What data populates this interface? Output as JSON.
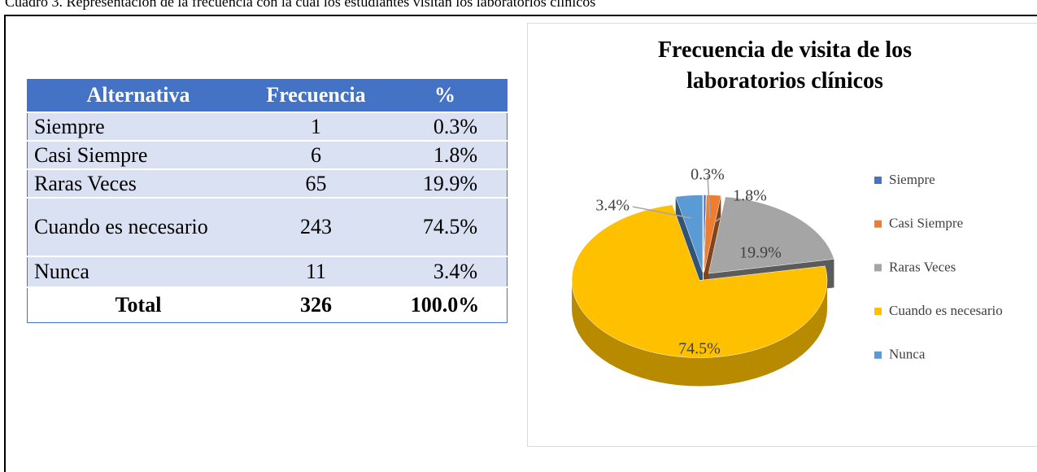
{
  "caption": "Cuadro 3. Representación de la frecuencia con la cual los estudiantes visitan los laboratorios clínicos",
  "table": {
    "header": [
      "Alternativa",
      "Frecuencia",
      "%"
    ],
    "rows": [
      [
        "Siempre",
        "1",
        "0.3%"
      ],
      [
        "Casi Siempre",
        "6",
        "1.8%"
      ],
      [
        "Raras Veces",
        "65",
        "19.9%"
      ],
      [
        "Cuando es necesario",
        "243",
        "74.5%"
      ],
      [
        "Nunca",
        "11",
        "3.4%"
      ]
    ],
    "total": [
      "Total",
      "326",
      "100.0%"
    ]
  },
  "chart_data": {
    "type": "pie",
    "title": "Frecuencia de visita de los laboratorios clínicos",
    "categories": [
      "Siempre",
      "Casi Siempre",
      "Raras Veces",
      "Cuando es necesario",
      "Nunca"
    ],
    "values": [
      0.3,
      1.8,
      19.9,
      74.5,
      3.4
    ],
    "value_labels": [
      "0.3%",
      "1.8%",
      "19.9%",
      "74.5%",
      "3.4%"
    ],
    "colors": [
      "#4472c4",
      "#ed7d31",
      "#a5a5a5",
      "#ffc000",
      "#5b9bd5"
    ],
    "legend": "right"
  }
}
